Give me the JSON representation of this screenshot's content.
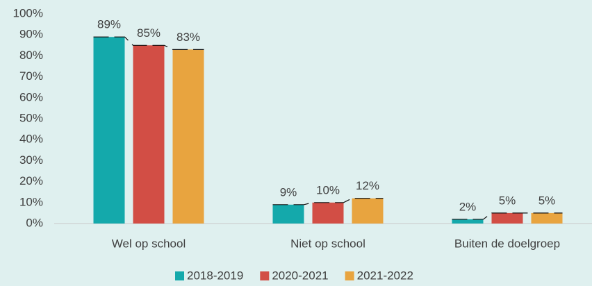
{
  "chart_data": {
    "type": "bar",
    "categories": [
      "Wel op school",
      "Niet op school",
      "Buiten de doelgroep"
    ],
    "series": [
      {
        "name": "2018-2019",
        "color": "#14a9ab",
        "values": [
          89,
          9,
          2
        ],
        "value_labels": [
          "89%",
          "9%",
          "2%"
        ]
      },
      {
        "name": "2020-2021",
        "color": "#d24e45",
        "values": [
          85,
          10,
          5
        ],
        "value_labels": [
          "85%",
          "10%",
          "5%"
        ]
      },
      {
        "name": "2021-2022",
        "color": "#e8a43f",
        "values": [
          83,
          12,
          5
        ],
        "value_labels": [
          "83%",
          "12%",
          "5%"
        ]
      }
    ],
    "ylim": [
      0,
      100
    ],
    "yticks": [
      {
        "value": 0,
        "label": "0%"
      },
      {
        "value": 10,
        "label": "10%"
      },
      {
        "value": 20,
        "label": "20%"
      },
      {
        "value": 30,
        "label": "30%"
      },
      {
        "value": 40,
        "label": "40%"
      },
      {
        "value": 50,
        "label": "50%"
      },
      {
        "value": 60,
        "label": "60%"
      },
      {
        "value": 70,
        "label": "70%"
      },
      {
        "value": 80,
        "label": "80%"
      },
      {
        "value": 90,
        "label": "90%"
      },
      {
        "value": 100,
        "label": "100%"
      }
    ],
    "grid": false,
    "legend": "bottom"
  }
}
